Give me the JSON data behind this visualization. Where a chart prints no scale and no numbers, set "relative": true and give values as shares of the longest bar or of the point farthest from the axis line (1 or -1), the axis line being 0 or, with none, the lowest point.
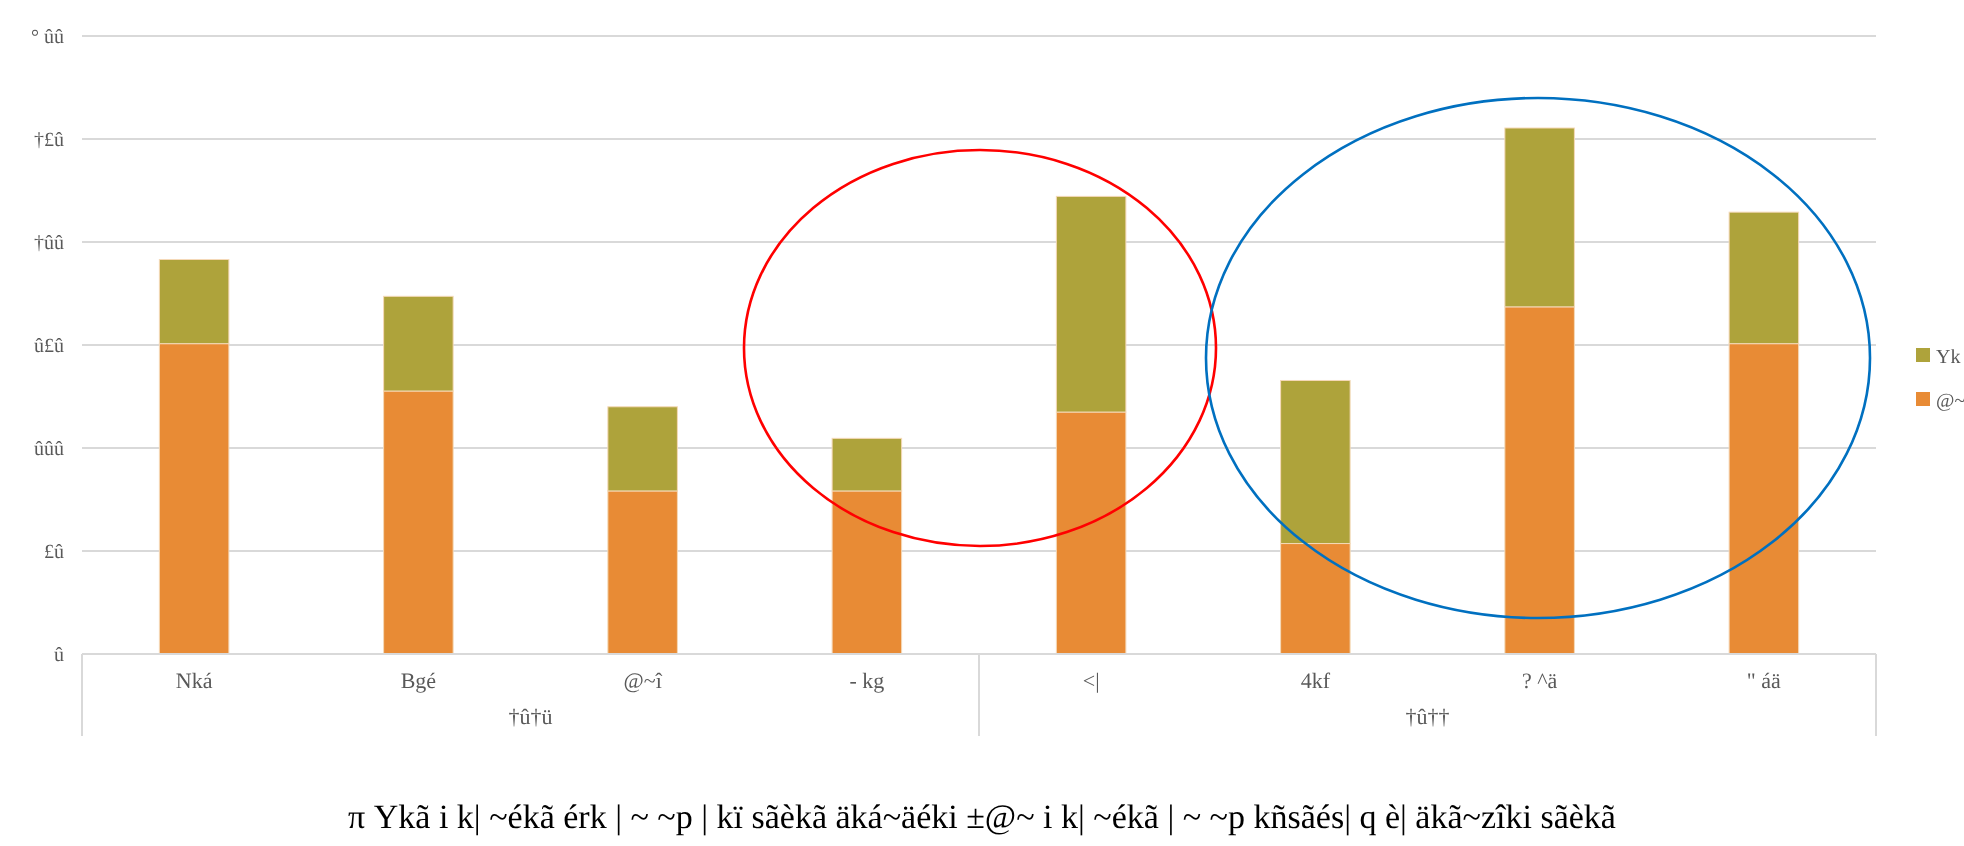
{
  "chart_data": {
    "type": "bar",
    "stacked": true,
    "relative": true,
    "categories": [
      "Nká",
      "Bgé",
      "@~î",
      "- kg",
      "<|",
      "4kf",
      "? ^ä",
      "\" áä"
    ],
    "series": [
      {
        "name": "@~",
        "color": "#e88b35",
        "values": [
          0.59,
          0.5,
          0.31,
          0.31,
          0.46,
          0.21,
          0.66,
          0.59
        ]
      },
      {
        "name": "Yk",
        "color": "#aea33b",
        "values": [
          0.16,
          0.18,
          0.16,
          0.1,
          0.41,
          0.31,
          0.34,
          0.25
        ]
      }
    ],
    "grid": "y",
    "legend": "right",
    "annotations": [
      "û",
      "£û",
      "ûûû",
      "û£û",
      "†ûû",
      "†£û",
      "° ûû",
      "†û†ü",
      "†û††",
      "π Ykã i k| ~ékã érk | ~ ~p | kï  sãèkã äká~äéki ±@~ i k| ~ékã | ~ ~p kñsãés| q è| äkã~zîki  sãèkã"
    ]
  }
}
